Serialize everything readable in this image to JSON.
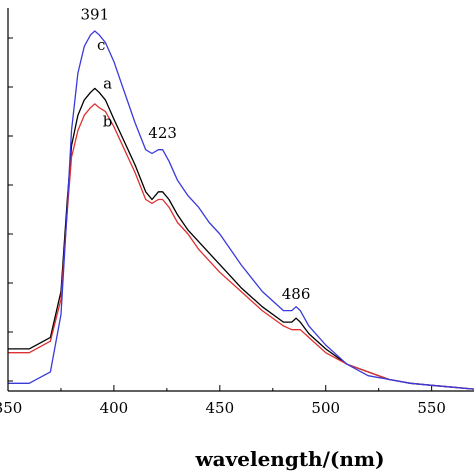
{
  "chart_data": {
    "type": "line",
    "xlabel": "wavelength/(nm)",
    "ylabel": "",
    "xlim": [
      350,
      570
    ],
    "ylim": [
      0,
      1.0
    ],
    "x_ticks": [
      350,
      400,
      450,
      500,
      550
    ],
    "x_tick_labels": [
      "350",
      "400",
      "450",
      "500",
      "550"
    ],
    "grid": false,
    "series": [
      {
        "name": "a",
        "color": "#000000",
        "x": [
          350,
          360,
          370,
          375,
          378,
          380,
          383,
          386,
          389,
          391,
          393,
          396,
          400,
          405,
          410,
          415,
          418,
          421,
          423,
          426,
          430,
          435,
          440,
          450,
          460,
          470,
          480,
          484,
          486,
          488,
          492,
          500,
          510,
          520,
          530,
          540,
          550,
          560,
          570
        ],
        "y": [
          0.11,
          0.11,
          0.14,
          0.26,
          0.5,
          0.64,
          0.72,
          0.76,
          0.78,
          0.79,
          0.78,
          0.76,
          0.71,
          0.65,
          0.59,
          0.52,
          0.5,
          0.52,
          0.52,
          0.5,
          0.46,
          0.42,
          0.39,
          0.33,
          0.27,
          0.22,
          0.18,
          0.18,
          0.19,
          0.18,
          0.15,
          0.11,
          0.07,
          0.05,
          0.03,
          0.02,
          0.015,
          0.01,
          0.005
        ]
      },
      {
        "name": "b",
        "color": "#e03030",
        "x": [
          350,
          360,
          370,
          375,
          378,
          380,
          383,
          386,
          389,
          391,
          393,
          396,
          400,
          405,
          410,
          415,
          418,
          421,
          423,
          426,
          430,
          435,
          440,
          450,
          460,
          470,
          480,
          484,
          486,
          488,
          492,
          500,
          510,
          520,
          530,
          540,
          550,
          560,
          570
        ],
        "y": [
          0.1,
          0.1,
          0.13,
          0.24,
          0.47,
          0.61,
          0.68,
          0.72,
          0.74,
          0.75,
          0.74,
          0.73,
          0.69,
          0.63,
          0.57,
          0.5,
          0.49,
          0.5,
          0.5,
          0.48,
          0.44,
          0.41,
          0.37,
          0.31,
          0.26,
          0.21,
          0.17,
          0.16,
          0.16,
          0.16,
          0.14,
          0.1,
          0.07,
          0.05,
          0.03,
          0.02,
          0.015,
          0.01,
          0.005
        ]
      },
      {
        "name": "c",
        "color": "#3a3adc",
        "x": [
          350,
          360,
          370,
          375,
          378,
          380,
          383,
          386,
          389,
          391,
          393,
          396,
          400,
          405,
          410,
          415,
          418,
          421,
          423,
          426,
          430,
          435,
          440,
          445,
          450,
          460,
          470,
          480,
          484,
          486,
          488,
          492,
          500,
          510,
          520,
          530,
          540,
          550,
          560,
          570
        ],
        "y": [
          0.02,
          0.02,
          0.05,
          0.2,
          0.48,
          0.68,
          0.83,
          0.9,
          0.93,
          0.94,
          0.93,
          0.91,
          0.86,
          0.78,
          0.7,
          0.63,
          0.62,
          0.63,
          0.63,
          0.6,
          0.55,
          0.51,
          0.48,
          0.44,
          0.41,
          0.33,
          0.26,
          0.21,
          0.21,
          0.22,
          0.21,
          0.17,
          0.12,
          0.07,
          0.04,
          0.03,
          0.02,
          0.015,
          0.01,
          0.005
        ]
      }
    ],
    "annotations": [
      {
        "text": "391",
        "x": 391,
        "y": 0.97
      },
      {
        "text": "c",
        "x": 394,
        "y": 0.89
      },
      {
        "text": "a",
        "x": 397,
        "y": 0.79
      },
      {
        "text": "b",
        "x": 397,
        "y": 0.69
      },
      {
        "text": "423",
        "x": 423,
        "y": 0.66
      },
      {
        "text": "486",
        "x": 486,
        "y": 0.24
      }
    ]
  }
}
